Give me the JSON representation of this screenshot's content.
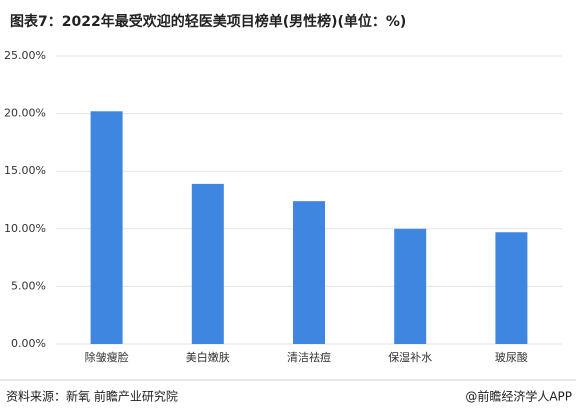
{
  "chart_data": {
    "type": "bar",
    "title": "图表7：2022年最受欢迎的轻医美项目榜单(男性榜)(单位：%)",
    "categories": [
      "除皱瘦脸",
      "美白嫩肤",
      "清洁祛痘",
      "保湿补水",
      "玻尿酸"
    ],
    "values": [
      20.2,
      13.9,
      12.4,
      10.0,
      9.7
    ],
    "color": "#3f86e0",
    "ylim": [
      0,
      25
    ],
    "yticks": [
      {
        "value": 0,
        "label": "0.00%"
      },
      {
        "value": 5,
        "label": "5.00%"
      },
      {
        "value": 10,
        "label": "10.00%"
      },
      {
        "value": 15,
        "label": "15.00%"
      },
      {
        "value": 20,
        "label": "20.00%"
      },
      {
        "value": 25,
        "label": "25.00%"
      }
    ],
    "grid": true,
    "source": "资料来源：新氧 前瞻产业研究院",
    "credit": "@前瞻经济学人APP"
  }
}
